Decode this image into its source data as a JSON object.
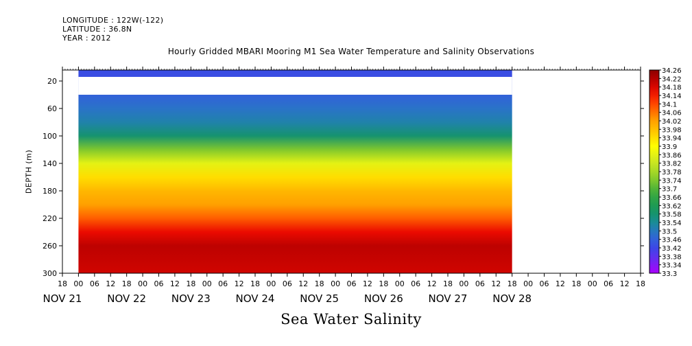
{
  "header": {
    "longitude": "LONGITUDE : 122W(-122)",
    "latitude": "LATITUDE : 36.8N",
    "year": "YEAR : 2012"
  },
  "chart_data": {
    "type": "heatmap",
    "title": "Hourly Gridded MBARI Mooring M1 Sea Water Temperature and Salinity Observations",
    "xlabel": "Sea Water Salinity",
    "ylabel": "DEPTH (m)",
    "y_reversed": true,
    "ylim": [
      300,
      4
    ],
    "y_ticks": [
      20,
      60,
      100,
      140,
      180,
      220,
      260,
      300
    ],
    "x_hour_labels": [
      "18",
      "00",
      "06",
      "12",
      "18",
      "00",
      "06",
      "12",
      "18",
      "00",
      "06",
      "12",
      "18",
      "00",
      "06",
      "12",
      "18",
      "00",
      "06",
      "12",
      "18",
      "00",
      "06",
      "12",
      "18",
      "00",
      "06",
      "12",
      "18",
      "00",
      "06",
      "12",
      "18",
      "00",
      "06",
      "12",
      "18"
    ],
    "x_day_labels": [
      "NOV 21",
      "NOV 22",
      "NOV 23",
      "NOV 24",
      "NOV 25",
      "NOV 26",
      "NOV 27",
      "NOV 28"
    ],
    "x_day_positions_hours": [
      0,
      24,
      48,
      72,
      96,
      120,
      144,
      168
    ],
    "data_start_hour": 6,
    "data_end_hour": 168,
    "missing_depth_band": [
      14,
      40
    ],
    "colorbar": {
      "min": 33.3,
      "max": 34.26,
      "step": 0.04,
      "labels": [
        "34.26",
        "34.22",
        "34.18",
        "34.14",
        "34.1",
        "34.06",
        "34.02",
        "33.98",
        "33.94",
        "33.9",
        "33.86",
        "33.82",
        "33.78",
        "33.74",
        "33.7",
        "33.66",
        "33.62",
        "33.58",
        "33.54",
        "33.5",
        "33.46",
        "33.42",
        "33.38",
        "33.34",
        "33.3"
      ]
    },
    "profile": [
      {
        "depth": 4,
        "salinity": 33.43
      },
      {
        "depth": 14,
        "salinity": 33.43
      },
      {
        "depth": 40,
        "salinity": 33.46
      },
      {
        "depth": 60,
        "salinity": 33.49
      },
      {
        "depth": 80,
        "salinity": 33.52
      },
      {
        "depth": 100,
        "salinity": 33.58
      },
      {
        "depth": 120,
        "salinity": 33.74
      },
      {
        "depth": 140,
        "salinity": 33.86
      },
      {
        "depth": 160,
        "salinity": 33.94
      },
      {
        "depth": 180,
        "salinity": 33.99
      },
      {
        "depth": 200,
        "salinity": 34.02
      },
      {
        "depth": 220,
        "salinity": 34.08
      },
      {
        "depth": 240,
        "salinity": 34.16
      },
      {
        "depth": 260,
        "salinity": 34.21
      },
      {
        "depth": 280,
        "salinity": 34.2
      },
      {
        "depth": 300,
        "salinity": 34.19
      }
    ],
    "grid": false,
    "legend": "right colorbar"
  }
}
